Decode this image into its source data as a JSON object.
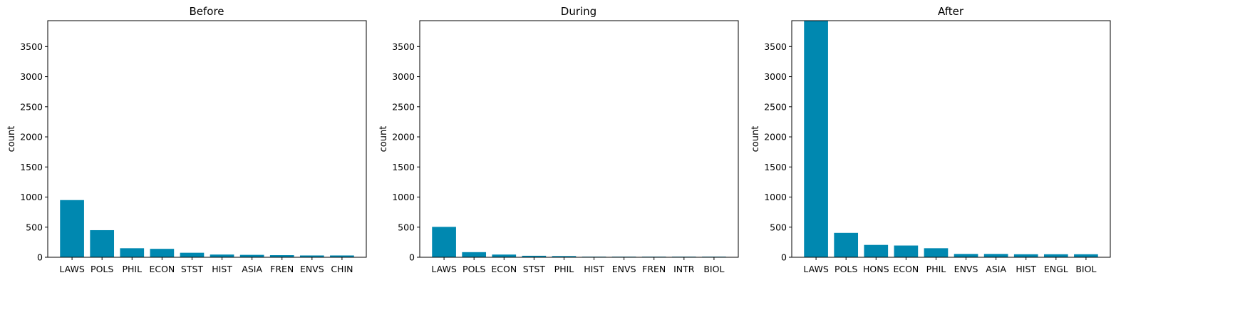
{
  "colors": {
    "bar": "#0088b0",
    "axis": "#000000",
    "background": "#ffffff"
  },
  "chart_data": [
    {
      "type": "bar",
      "title": "Before",
      "xlabel": "",
      "ylabel": "count",
      "ylim": [
        0,
        3930
      ],
      "yticks": [
        0,
        500,
        1000,
        1500,
        2000,
        2500,
        3000,
        3500
      ],
      "categories": [
        "LAWS",
        "POLS",
        "PHIL",
        "ECON",
        "STST",
        "HIST",
        "ASIA",
        "FREN",
        "ENVS",
        "CHIN"
      ],
      "values": [
        950,
        450,
        150,
        140,
        75,
        45,
        40,
        35,
        30,
        30
      ]
    },
    {
      "type": "bar",
      "title": "During",
      "xlabel": "",
      "ylabel": "count",
      "ylim": [
        0,
        3930
      ],
      "yticks": [
        0,
        500,
        1000,
        1500,
        2000,
        2500,
        3000,
        3500
      ],
      "categories": [
        "LAWS",
        "POLS",
        "ECON",
        "STST",
        "PHIL",
        "HIST",
        "ENVS",
        "FREN",
        "INTR",
        "BIOL"
      ],
      "values": [
        505,
        85,
        45,
        25,
        20,
        10,
        10,
        10,
        10,
        10
      ]
    },
    {
      "type": "bar",
      "title": "After",
      "xlabel": "",
      "ylabel": "count",
      "ylim": [
        0,
        3930
      ],
      "yticks": [
        0,
        500,
        1000,
        1500,
        2000,
        2500,
        3000,
        3500
      ],
      "categories": [
        "LAWS",
        "POLS",
        "HONS",
        "ECON",
        "PHIL",
        "ENVS",
        "ASIA",
        "HIST",
        "ENGL",
        "BIOL"
      ],
      "values": [
        3930,
        405,
        205,
        195,
        150,
        55,
        55,
        50,
        50,
        50
      ]
    }
  ]
}
